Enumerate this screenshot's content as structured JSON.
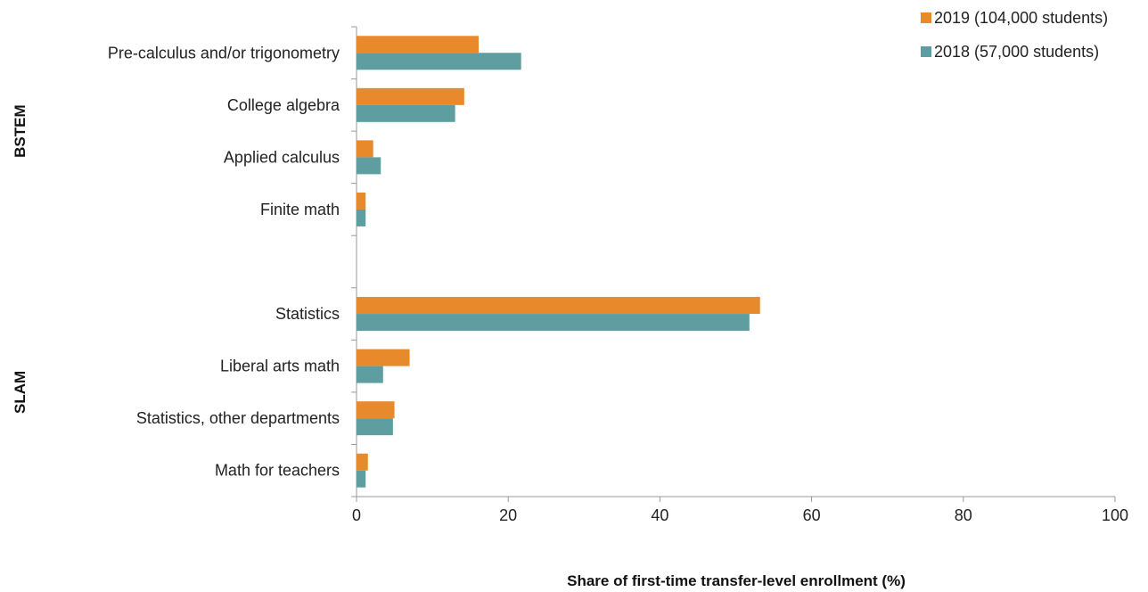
{
  "chart_data": {
    "type": "bar",
    "orientation": "horizontal",
    "xlabel": "Share of first-time transfer-level enrollment (%)",
    "xlim": [
      0,
      100
    ],
    "xticks": [
      "0",
      "20",
      "40",
      "60",
      "80",
      "100"
    ],
    "grid": false,
    "legend_position": "top-right",
    "groups": [
      {
        "label": "BSTEM",
        "categories": [
          "Pre-calculus and/or trigonometry",
          "College algebra",
          "Applied calculus",
          "Finite math"
        ]
      },
      {
        "label": "SLAM",
        "categories": [
          "Statistics",
          "Liberal arts math",
          "Statistics, other departments",
          "Math for teachers"
        ]
      }
    ],
    "categories": [
      "Pre-calculus and/or trigonometry",
      "College algebra",
      "Applied calculus",
      "Finite math",
      "Statistics",
      "Liberal arts math",
      "Statistics, other departments",
      "Math for teachers"
    ],
    "series": [
      {
        "name": "2019 (104,000 students)",
        "color": "#E8892B",
        "values": [
          16.1,
          14.2,
          2.2,
          1.2,
          53.2,
          7.0,
          5.0,
          1.5
        ]
      },
      {
        "name": "2018 (57,000 students)",
        "color": "#5F9EA0",
        "values": [
          21.7,
          13.0,
          3.2,
          1.2,
          51.8,
          3.5,
          4.8,
          1.2
        ]
      }
    ]
  }
}
